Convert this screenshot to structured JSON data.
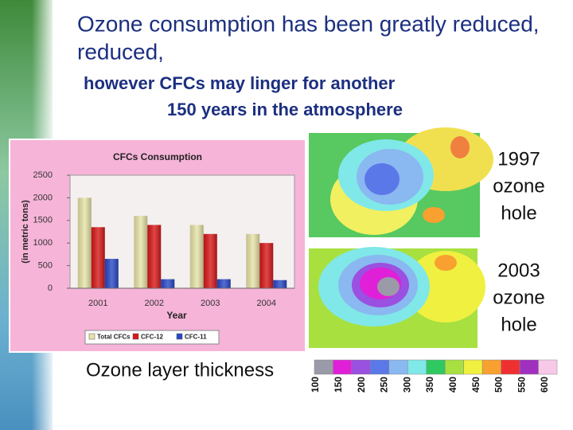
{
  "title": "Ozone consumption has been greatly reduced,",
  "subtitle_lines": [
    "however CFCs may linger for another",
    "150 years in the atmosphere"
  ],
  "image_labels": [
    [
      "1997",
      "ozone",
      "hole"
    ],
    [
      "2003",
      "ozone",
      "hole"
    ]
  ],
  "scale": {
    "label": "Ozone layer thickness",
    "ticks": [
      100,
      150,
      200,
      250,
      300,
      350,
      400,
      450,
      500,
      550,
      600
    ],
    "colors": [
      "#9a9aa8",
      "#e020d8",
      "#9a50e0",
      "#5a78e8",
      "#8ab8f0",
      "#80e8e8",
      "#30c860",
      "#a8e040",
      "#f0f040",
      "#f8a030",
      "#f03030",
      "#a030c0",
      "#f8c8e8"
    ]
  },
  "chart_data": {
    "type": "bar",
    "title": "CFCs Consumption",
    "x_label": "Year",
    "y_label": "(in metric tons)",
    "categories": [
      "2001",
      "2002",
      "2003",
      "2004"
    ],
    "series": [
      {
        "name": "Total CFCs",
        "color": "#e8e4a8",
        "values": [
          2000,
          1600,
          1400,
          1200
        ]
      },
      {
        "name": "CFC-12",
        "color": "#d81818",
        "values": [
          1350,
          1400,
          1200,
          1000
        ]
      },
      {
        "name": "CFC-11",
        "color": "#2848c8",
        "values": [
          650,
          200,
          200,
          180
        ]
      }
    ],
    "ylim": [
      0,
      2500
    ],
    "yticks": [
      0,
      500,
      1000,
      1500,
      2000,
      2500
    ]
  }
}
